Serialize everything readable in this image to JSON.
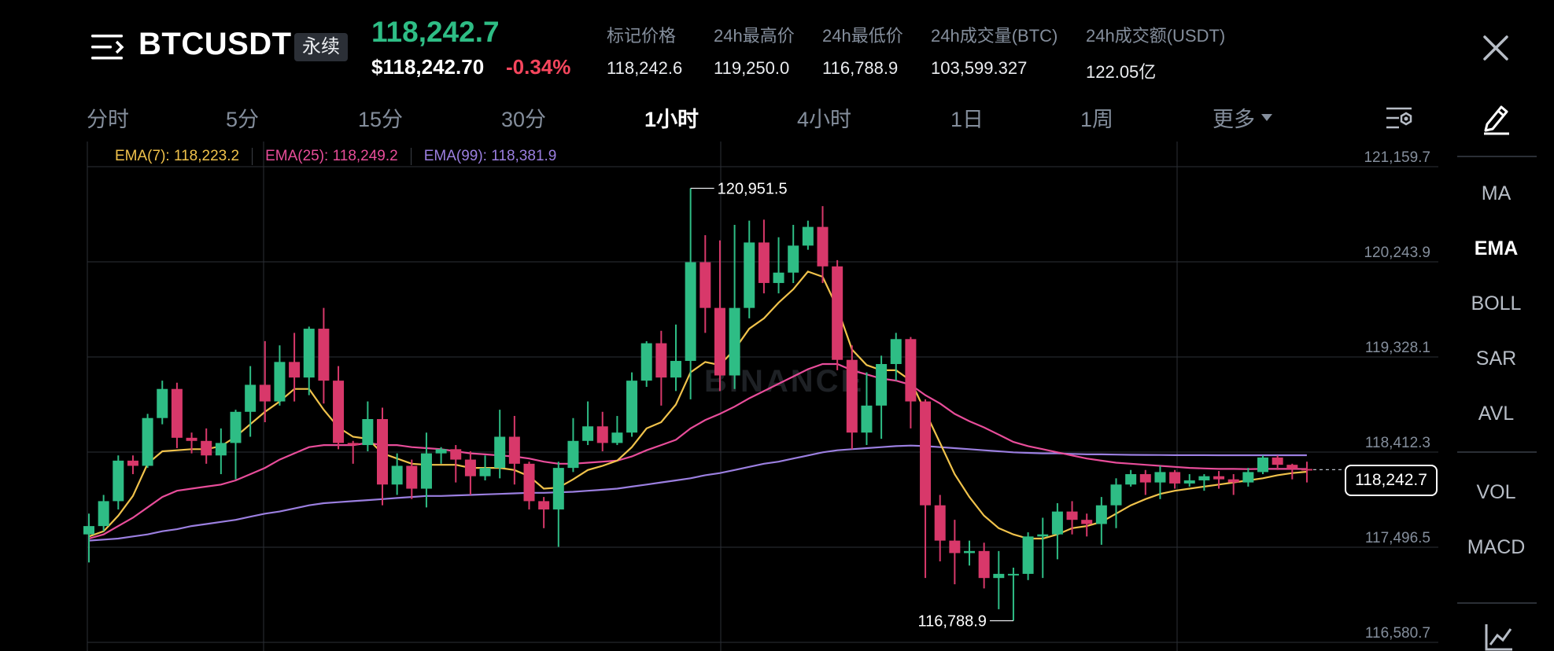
{
  "header": {
    "symbol": "BTCUSDT",
    "badge": "永续",
    "last_price": "118,242.7",
    "usd_price": "$118,242.70",
    "change_pct": "-0.34%",
    "stats": [
      {
        "label": "标记价格",
        "value": "118,242.6"
      },
      {
        "label": "24h最高价",
        "value": "119,250.0"
      },
      {
        "label": "24h最低价",
        "value": "116,788.9"
      },
      {
        "label": "24h成交量(BTC)",
        "value": "103,599.327"
      },
      {
        "label": "24h成交额(USDT)",
        "value": "122.05亿"
      }
    ]
  },
  "tabs": [
    {
      "label": "分时"
    },
    {
      "label": "5分"
    },
    {
      "label": "15分"
    },
    {
      "label": "30分"
    },
    {
      "label": "1小时"
    },
    {
      "label": "4小时"
    },
    {
      "label": "1日"
    },
    {
      "label": "1周"
    },
    {
      "label": "更多"
    }
  ],
  "active_tab": "1小时",
  "ema_legend": {
    "ema7": "EMA(7): 118,223.2",
    "ema25": "EMA(25): 118,249.2",
    "ema99": "EMA(99): 118,381.9"
  },
  "watermark": "BINANCE",
  "colors": {
    "up": "#2ebd85",
    "down": "#d8386a",
    "ema7": "#f0c24b",
    "ema25": "#e84d9a",
    "ema99": "#9b7fe0",
    "bg": "#000000",
    "grid": "#2b2f36"
  },
  "chart_data": {
    "type": "candlestick",
    "y_ticks": [
      "121,159.7",
      "120,243.9",
      "119,328.1",
      "118,412.3",
      "117,496.5",
      "116,580.7"
    ],
    "ylim": [
      116580.7,
      121159.7
    ],
    "max_label": "120,951.5",
    "min_label": "116,788.9",
    "current_price_label": "118,242.7",
    "candles": [
      [
        117620,
        117700,
        117350,
        117820
      ],
      [
        117700,
        117940,
        117650,
        118000
      ],
      [
        117940,
        118330,
        117860,
        118380
      ],
      [
        118330,
        118280,
        118200,
        118380
      ],
      [
        118280,
        118740,
        118260,
        118780
      ],
      [
        118740,
        119020,
        118680,
        119100
      ],
      [
        119020,
        118550,
        118450,
        119080
      ],
      [
        118550,
        118520,
        118400,
        118600
      ],
      [
        118520,
        118380,
        118300,
        118640
      ],
      [
        118380,
        118500,
        118200,
        118640
      ],
      [
        118500,
        118800,
        118150,
        118820
      ],
      [
        118800,
        119060,
        118560,
        119240
      ],
      [
        119060,
        118900,
        118700,
        119480
      ],
      [
        118900,
        119280,
        118860,
        119440
      ],
      [
        119280,
        119130,
        118900,
        119560
      ],
      [
        119130,
        119600,
        118960,
        119620
      ],
      [
        119600,
        119100,
        118880,
        119800
      ],
      [
        119100,
        118500,
        118440,
        119240
      ],
      [
        118500,
        118480,
        118300,
        118520
      ],
      [
        118480,
        118730,
        118420,
        118900
      ],
      [
        118730,
        118100,
        117900,
        118840
      ],
      [
        118100,
        118280,
        118000,
        118400
      ],
      [
        118280,
        118060,
        117960,
        118340
      ],
      [
        118060,
        118400,
        117880,
        118600
      ],
      [
        118400,
        118440,
        118300,
        118460
      ],
      [
        118440,
        118340,
        118120,
        118480
      ],
      [
        118340,
        118180,
        118000,
        118420
      ],
      [
        118180,
        118260,
        118140,
        118380
      ],
      [
        118260,
        118560,
        118160,
        118820
      ],
      [
        118560,
        118300,
        118100,
        118760
      ],
      [
        118300,
        117940,
        117860,
        118320
      ],
      [
        117940,
        117860,
        117680,
        117980
      ],
      [
        117860,
        118260,
        117500,
        118320
      ],
      [
        118260,
        118520,
        118220,
        118740
      ],
      [
        118520,
        118660,
        118480,
        118900
      ],
      [
        118660,
        118500,
        118420,
        118800
      ],
      [
        118500,
        118600,
        118480,
        118760
      ],
      [
        118600,
        119100,
        118560,
        119180
      ],
      [
        119100,
        119460,
        119040,
        119480
      ],
      [
        119460,
        119130,
        118860,
        119580
      ],
      [
        119130,
        119290,
        119000,
        119640
      ],
      [
        119290,
        120240,
        118920,
        120951.5
      ],
      [
        120240,
        119800,
        119560,
        120500
      ],
      [
        119800,
        119150,
        119000,
        120450
      ],
      [
        119150,
        119800,
        119020,
        120600
      ],
      [
        119800,
        120430,
        119700,
        120640
      ],
      [
        120430,
        120040,
        119940,
        120650
      ],
      [
        120040,
        120140,
        119940,
        120480
      ],
      [
        120140,
        120400,
        120040,
        120600
      ],
      [
        120400,
        120580,
        120360,
        120640
      ],
      [
        120580,
        120200,
        120040,
        120780
      ],
      [
        120200,
        119300,
        119200,
        120260
      ],
      [
        119300,
        118600,
        118440,
        119440
      ],
      [
        118600,
        118860,
        118480,
        119180
      ],
      [
        118860,
        119260,
        118540,
        119340
      ],
      [
        119260,
        119500,
        119100,
        119560
      ],
      [
        119500,
        118900,
        118640,
        119520
      ],
      [
        118900,
        117900,
        117200,
        118920
      ],
      [
        117900,
        117560,
        117360,
        118000
      ],
      [
        117560,
        117440,
        117140,
        117760
      ],
      [
        117440,
        117460,
        117320,
        117560
      ],
      [
        117460,
        117200,
        117100,
        117540
      ],
      [
        117200,
        117240,
        116900,
        117460
      ],
      [
        117240,
        117240,
        116788.9,
        117300
      ],
      [
        117240,
        117600,
        117180,
        117640
      ],
      [
        117600,
        117620,
        117200,
        117780
      ],
      [
        117620,
        117840,
        117380,
        117920
      ],
      [
        117840,
        117760,
        117620,
        117940
      ],
      [
        117760,
        117720,
        117600,
        117820
      ],
      [
        117720,
        117900,
        117520,
        117980
      ],
      [
        117900,
        118100,
        117680,
        118160
      ],
      [
        118100,
        118200,
        118080,
        118240
      ],
      [
        118200,
        118120,
        118000,
        118240
      ],
      [
        118120,
        118220,
        117960,
        118280
      ],
      [
        118220,
        118110,
        118060,
        118240
      ],
      [
        118110,
        118140,
        118080,
        118200
      ],
      [
        118140,
        118180,
        118040,
        118200
      ],
      [
        118180,
        118150,
        118060,
        118230
      ],
      [
        118150,
        118120,
        118000,
        118200
      ],
      [
        118120,
        118220,
        118080,
        118260
      ],
      [
        118220,
        118360,
        118200,
        118380
      ],
      [
        118360,
        118290,
        118240,
        118380
      ],
      [
        118290,
        118250,
        118150,
        118300
      ],
      [
        118250,
        118242.7,
        118120,
        118320
      ]
    ],
    "ema7": [
      117600,
      117650,
      117800,
      117990,
      118300,
      118420,
      118430,
      118440,
      118440,
      118470,
      118560,
      118680,
      118800,
      118900,
      119020,
      119020,
      118820,
      118650,
      118560,
      118540,
      118400,
      118350,
      118300,
      118290,
      118290,
      118290,
      118260,
      118260,
      118260,
      118240,
      118180,
      118060,
      118070,
      118150,
      118240,
      118280,
      118330,
      118460,
      118640,
      118700,
      118870,
      119180,
      119280,
      119250,
      119400,
      119600,
      119700,
      119850,
      119980,
      120150,
      120100,
      119800,
      119400,
      119250,
      119200,
      119200,
      119100,
      118800,
      118500,
      118200,
      117980,
      117800,
      117680,
      117620,
      117580,
      117580,
      117620,
      117680,
      117700,
      117740,
      117820,
      117900,
      117960,
      118010,
      118040,
      118060,
      118080,
      118100,
      118120,
      118140,
      118160,
      118190,
      118210,
      118223.2
    ],
    "ema25": [
      117580,
      117620,
      117700,
      117780,
      117880,
      117980,
      118040,
      118060,
      118080,
      118100,
      118140,
      118200,
      118260,
      118340,
      118400,
      118460,
      118480,
      118480,
      118480,
      118500,
      118480,
      118480,
      118460,
      118450,
      118440,
      118420,
      118400,
      118390,
      118380,
      118370,
      118350,
      118320,
      118300,
      118300,
      118310,
      118320,
      118330,
      118370,
      118430,
      118480,
      118530,
      118640,
      118720,
      118780,
      118850,
      118930,
      119000,
      119070,
      119140,
      119210,
      119260,
      119260,
      119200,
      119160,
      119120,
      119100,
      119060,
      118960,
      118880,
      118780,
      118710,
      118650,
      118580,
      118510,
      118470,
      118440,
      118410,
      118380,
      118350,
      118330,
      118310,
      118300,
      118290,
      118280,
      118270,
      118260,
      118255,
      118250,
      118250,
      118248,
      118250,
      118250,
      118250,
      118249.2
    ],
    "ema99": [
      117560,
      117570,
      117580,
      117600,
      117620,
      117650,
      117670,
      117700,
      117720,
      117740,
      117760,
      117790,
      117820,
      117840,
      117870,
      117900,
      117920,
      117930,
      117940,
      117950,
      117960,
      117970,
      117980,
      117990,
      117990,
      117995,
      118000,
      118005,
      118010,
      118015,
      118020,
      118020,
      118025,
      118030,
      118040,
      118050,
      118060,
      118080,
      118100,
      118120,
      118140,
      118160,
      118190,
      118210,
      118240,
      118270,
      118300,
      118320,
      118350,
      118380,
      118410,
      118430,
      118440,
      118450,
      118460,
      118470,
      118475,
      118470,
      118460,
      118450,
      118440,
      118430,
      118420,
      118410,
      118405,
      118400,
      118400,
      118395,
      118390,
      118390,
      118388,
      118386,
      118385,
      118384,
      118383,
      118383,
      118383,
      118382,
      118382,
      118382,
      118382,
      118382,
      118382,
      118381.9
    ]
  },
  "indicators": {
    "items": [
      "MA",
      "EMA",
      "BOLL",
      "SAR",
      "AVL",
      "VOL",
      "MACD"
    ],
    "active": "EMA"
  }
}
